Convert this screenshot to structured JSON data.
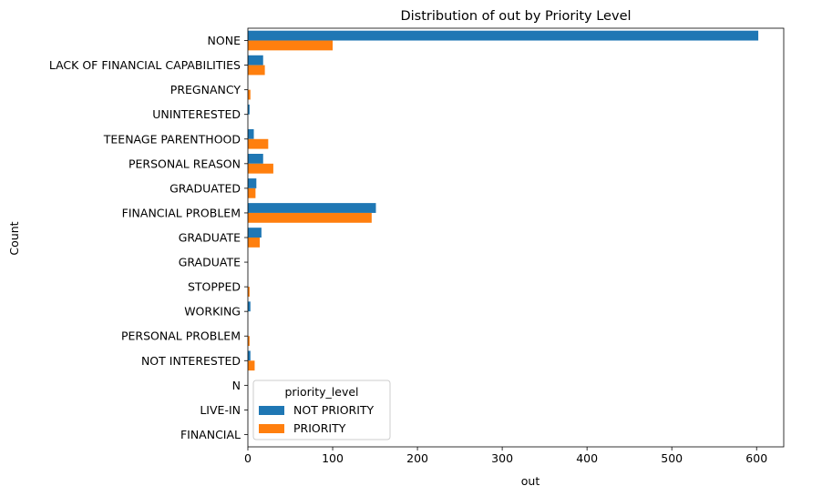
{
  "chart_data": {
    "type": "bar",
    "orientation": "horizontal",
    "title": "Distribution of out by Priority Level",
    "xlabel": "out",
    "ylabel": "Count",
    "categories": [
      "NONE",
      "LACK OF FINANCIAL CAPABILITIES",
      "PREGNANCY",
      "UNINTERESTED",
      "TEENAGE PARENTHOOD",
      "PERSONAL REASON",
      "GRADUATED",
      "FINANCIAL PROBLEM",
      "GRADUATE",
      "GRADUATE ",
      "STOPPED",
      "WORKING",
      "PERSONAL PROBLEM",
      "NOT INTERESTED",
      "N",
      "LIVE-IN",
      "FINANCIAL"
    ],
    "series": [
      {
        "name": "NOT PRIORITY",
        "color": "#1f77b4",
        "values": [
          602,
          18,
          0,
          2,
          7,
          18,
          10,
          151,
          16,
          0,
          0,
          3,
          0,
          3,
          0,
          0,
          0
        ]
      },
      {
        "name": "PRIORITY",
        "color": "#ff7f0e",
        "values": [
          100,
          20,
          3,
          0,
          24,
          30,
          9,
          146,
          14,
          0,
          2,
          0,
          2,
          8,
          0,
          0,
          0
        ]
      }
    ],
    "xlim": [
      0,
      632
    ],
    "xticks": [
      0,
      100,
      200,
      300,
      400,
      500,
      600
    ],
    "grid": false,
    "legend": {
      "title": "priority_level",
      "location": "lower left"
    }
  }
}
